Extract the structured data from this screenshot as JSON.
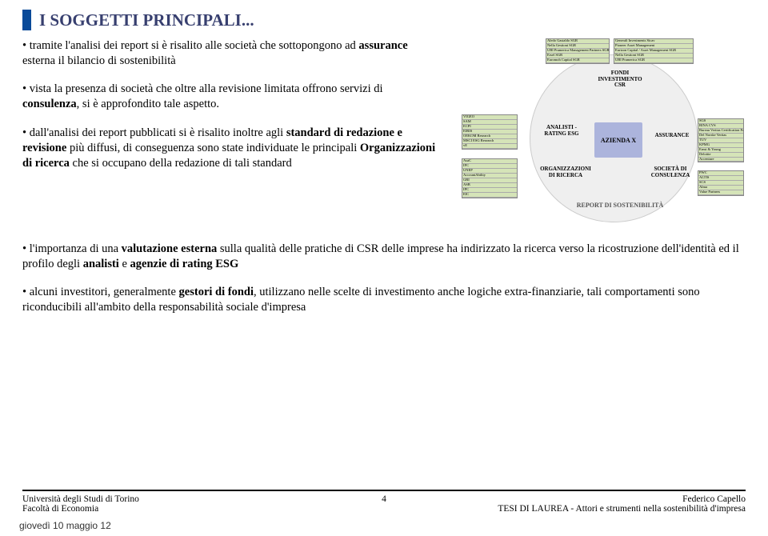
{
  "title": "I SOGGETTI PRINCIPALI...",
  "colors": {
    "title_bar": "#0a4a99",
    "title_text": "#373f6f",
    "body_text": "#000000",
    "background": "#ffffff",
    "circle_bg": "#efefef",
    "center_box": "#acb4dc",
    "tiny_table_bg": "#d5e4b8"
  },
  "paragraphs": {
    "p1_pre": "• tramite l'analisi dei report si è risalito alle società che sottopongono ad ",
    "p1_bold": "assurance",
    "p1_post": " esterna il bilancio di sostenibilità",
    "p2_pre": "• vista la presenza di società che oltre alla revisione limitata offrono servizi di ",
    "p2_bold": "consulenza",
    "p2_post": ", si è approfondito tale aspetto.",
    "p3_pre": "• dall'analisi dei report pubblicati si è risalito inoltre agli ",
    "p3_bold1": "standard di redazione e revisione",
    "p3_mid": " più diffusi, di conseguenza sono state individuate le principali ",
    "p3_bold2": "Organizzazioni di ricerca",
    "p3_post": " che si occupano della redazione di tali standard",
    "p4_pre": "• l'importanza di una ",
    "p4_bold1": "valutazione esterna",
    "p4_mid1": " sulla qualità delle pratiche di CSR delle imprese ha indirizzato la ricerca verso la ricostruzione dell'identità ed il profilo degli ",
    "p4_bold2": "analisti",
    "p4_mid2": " e ",
    "p4_bold3": "agenzie di rating ESG",
    "p5_pre": "• alcuni investitori, generalmente ",
    "p5_bold": "gestori di fondi",
    "p5_post": ", utilizzano nelle scelte di investimento anche logiche extra-finanziarie, tali comportamenti sono riconducibili all'ambito della responsabilità sociale d'impresa"
  },
  "diagram": {
    "center": "AZIENDA X",
    "fondi": "FONDI INVESTIMENTO CSR",
    "analisti": "ANALISTI - RATING ESG",
    "assurance": "ASSURANCE",
    "organizzazioni": "ORGANIZZAZIONI DI RICERCA",
    "societa": "SOCIETÀ DI CONSULENZA",
    "report": "REPORT DI SOSTENIBILITÀ",
    "tiny_top_left": [
      "Aledo Gastaldo SGR",
      "Nella Gestioni SGR",
      "UBI Pramerica Management Partners SGR",
      "Ersel SGR",
      "Euromoh Capital SGR"
    ],
    "tiny_top_right": [
      "Generali Investments Sicav",
      "Pioneer Asset Management",
      "Eurizon Capital / Asset Management SGR",
      "Nella Gestioni SGR",
      "UBI Pramerica SGR"
    ],
    "tiny_mid_left": [
      "VIGEO",
      "SAM",
      "ECPI",
      "EIRIS",
      "OEKOM Research",
      "MSCI ESG Research",
      "vE"
    ],
    "tiny_mid_right": [
      "SGS",
      "RINA CVS",
      "Bureau Veritas Certification France",
      "Del Norske Veritas",
      "TÜV",
      "KPMG",
      "Ernst & Young",
      "Deloitte",
      "Accenture"
    ],
    "tiny_bot_left": [
      "AsaC",
      "IFC",
      "UNEP",
      "AccountAbility",
      "GRI",
      "ASB",
      "IPC",
      "EIC"
    ],
    "tiny_bot_right": [
      "PWC",
      "ALTIS",
      "SCS",
      "Alma",
      "Value Partners"
    ]
  },
  "footer": {
    "uni": "Università degli Studi di Torino",
    "facolta": "Facoltà di Economia",
    "page_num": "4",
    "author": "Federico Capello",
    "thesis": "TESI DI LAUREA - Attori e strumenti nella sostenibilità d'impresa"
  },
  "date": "giovedì 10 maggio 12"
}
